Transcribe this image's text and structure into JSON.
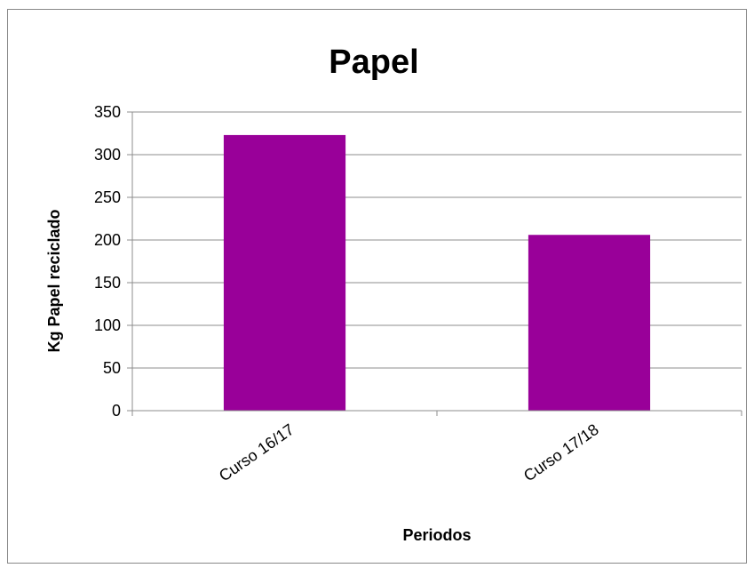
{
  "chart_data": {
    "type": "bar",
    "title": "Papel",
    "xlabel": "Periodos",
    "ylabel": "Kg Papel reciclado",
    "categories": [
      "Curso 16/17",
      "Curso 17/18"
    ],
    "series": [
      {
        "values": [
          323,
          206
        ]
      }
    ],
    "ylim": [
      0,
      350
    ],
    "yticks": [
      0,
      50,
      100,
      150,
      200,
      250,
      300,
      350
    ],
    "grid": true,
    "legend": "none",
    "colors": {
      "bar": "#990099",
      "grid": "#8c8c8c"
    }
  }
}
